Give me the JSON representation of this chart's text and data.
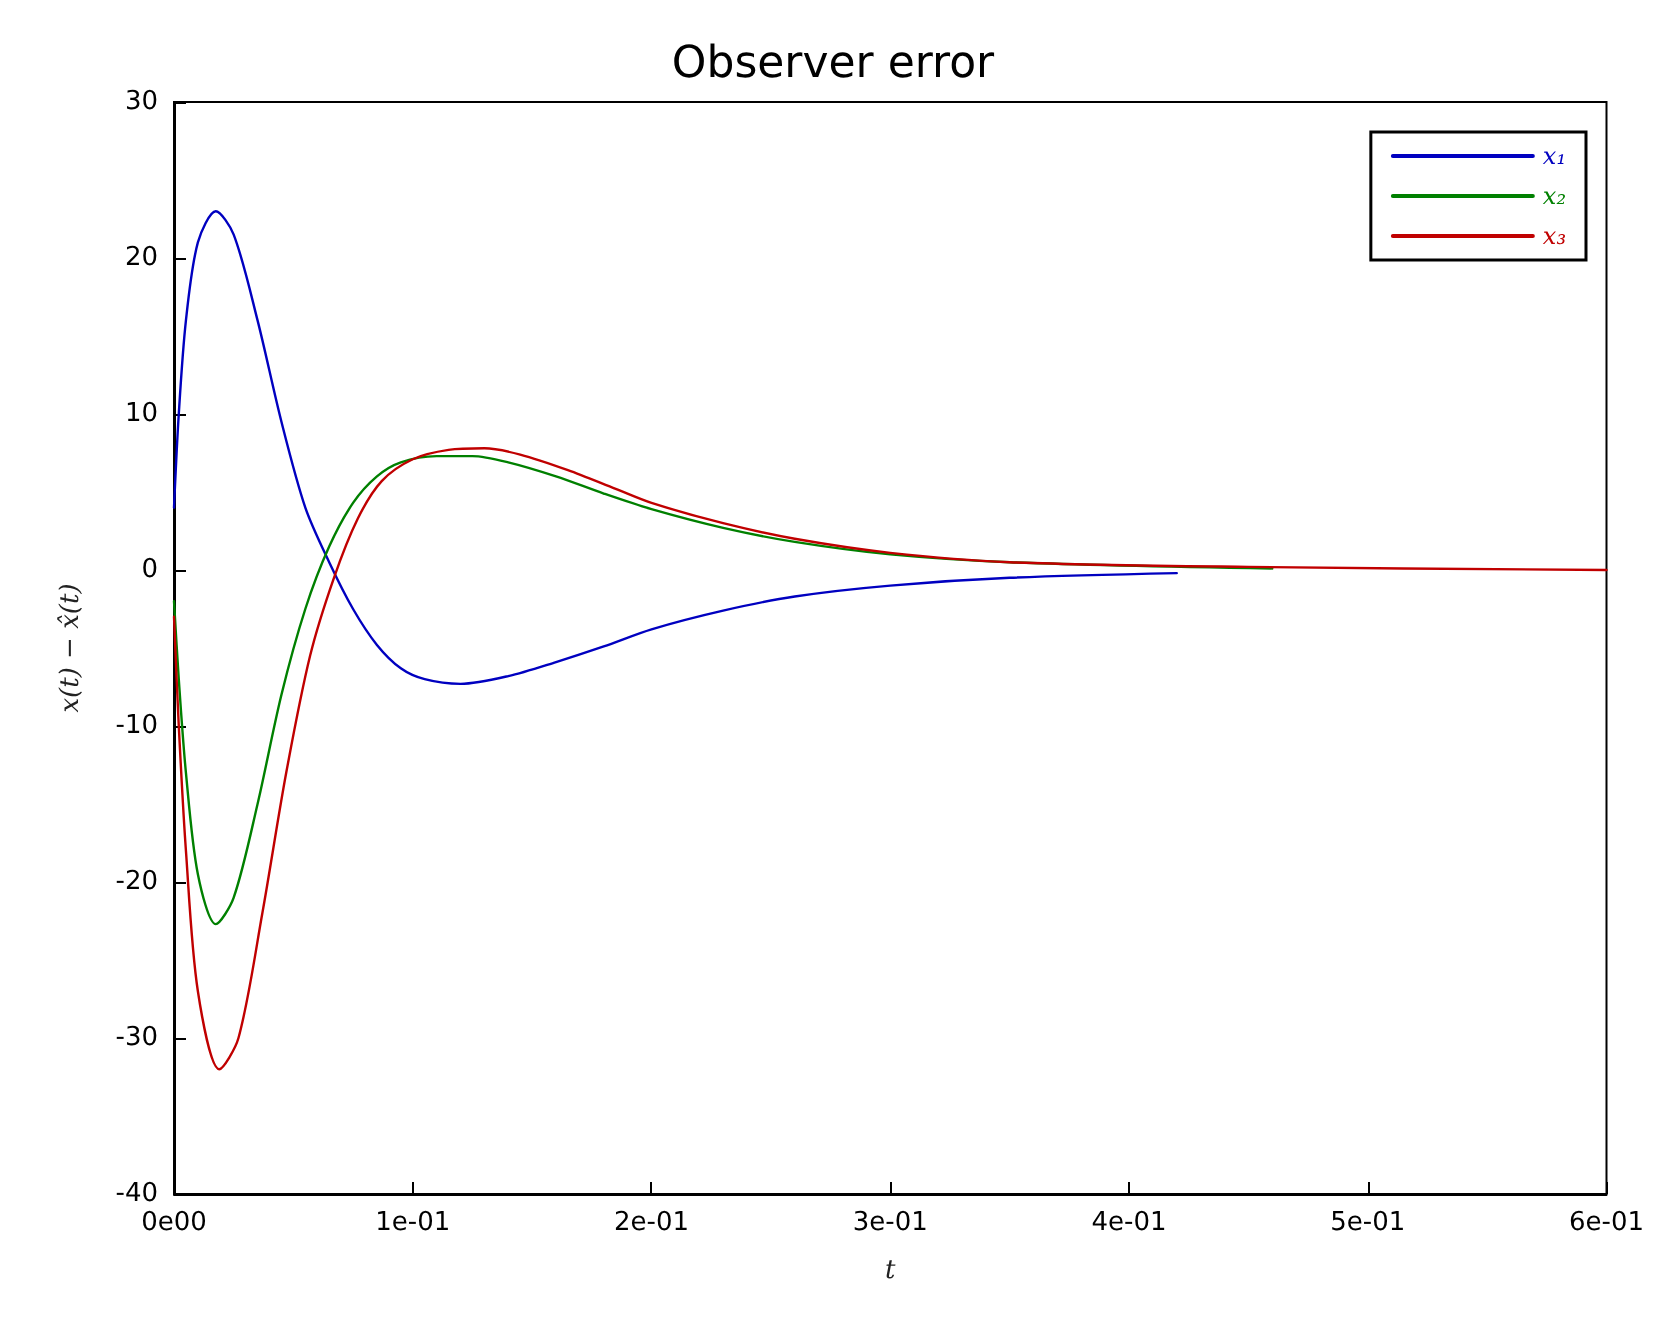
{
  "chart_data": {
    "type": "line",
    "title": "Observer error",
    "xlabel": "t",
    "ylabel": "x(t) − x̂(t)",
    "xlim": [
      0,
      0.6
    ],
    "xticks": [
      {
        "value": 0,
        "label": "0e00"
      },
      {
        "value": 0.1,
        "label": "1e-01"
      },
      {
        "value": 0.2,
        "label": "2e-01"
      },
      {
        "value": 0.3,
        "label": "3e-01"
      },
      {
        "value": 0.4,
        "label": "4e-01"
      },
      {
        "value": 0.5,
        "label": "5e-01"
      },
      {
        "value": 0.6,
        "label": "6e-01"
      }
    ],
    "ylim": [
      -40,
      30
    ],
    "yticks": [
      -40,
      -30,
      -20,
      -10,
      0,
      10,
      20,
      30
    ],
    "grid": false,
    "legend": "top right",
    "marker": "none",
    "line_style": "solid",
    "series": [
      {
        "name": "x₁",
        "color": "#0000c0",
        "x": [
          0,
          0.002,
          0.005,
          0.01,
          0.0175,
          0.025,
          0.035,
          0.045,
          0.055,
          0.065,
          0.075,
          0.085,
          0.095,
          0.105,
          0.12,
          0.14,
          0.16,
          0.18,
          0.2,
          0.23,
          0.26,
          0.3,
          0.35,
          0.42
        ],
        "values": [
          4,
          10,
          16,
          21,
          23,
          21.5,
          16,
          9.5,
          4,
          0.5,
          -2.5,
          -4.8,
          -6.3,
          -7,
          -7.3,
          -6.8,
          -5.9,
          -4.9,
          -3.8,
          -2.6,
          -1.7,
          -1,
          -0.5,
          -0.2
        ]
      },
      {
        "name": "x₂",
        "color": "#008000",
        "x": [
          0,
          0.002,
          0.005,
          0.01,
          0.0175,
          0.025,
          0.035,
          0.045,
          0.055,
          0.065,
          0.075,
          0.085,
          0.095,
          0.11,
          0.125,
          0.14,
          0.16,
          0.18,
          0.2,
          0.23,
          0.26,
          0.3,
          0.35,
          0.46
        ],
        "values": [
          -2,
          -7,
          -13,
          -19.5,
          -22.7,
          -21,
          -15,
          -8,
          -2.5,
          1.5,
          4.3,
          6,
          6.9,
          7.3,
          7.3,
          6.9,
          6,
          4.9,
          3.9,
          2.7,
          1.8,
          1,
          0.5,
          0.1
        ]
      },
      {
        "name": "x₃",
        "color": "#c00000",
        "x": [
          0,
          0.002,
          0.005,
          0.01,
          0.019,
          0.027,
          0.037,
          0.047,
          0.057,
          0.067,
          0.077,
          0.087,
          0.1,
          0.115,
          0.13,
          0.145,
          0.165,
          0.185,
          0.2,
          0.23,
          0.26,
          0.3,
          0.35,
          0.45,
          0.6
        ],
        "values": [
          -3,
          -10,
          -18,
          -27,
          -32,
          -30,
          -22,
          -13,
          -5.5,
          -0.5,
          3.3,
          5.7,
          7.1,
          7.7,
          7.8,
          7.4,
          6.4,
          5.2,
          4.3,
          3,
          2,
          1.1,
          0.5,
          0.2,
          0
        ]
      }
    ]
  }
}
